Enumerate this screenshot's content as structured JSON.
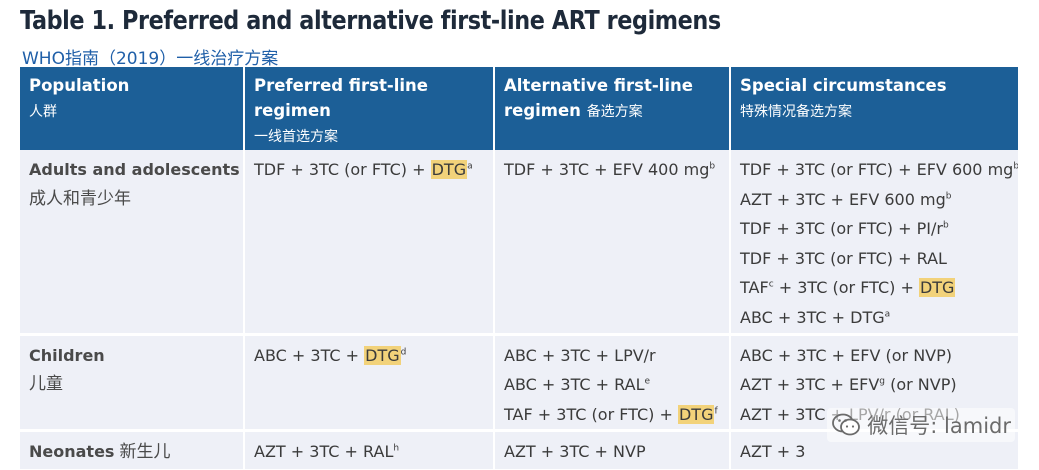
{
  "title": "Table 1. Preferred and alternative first-line ART regimens",
  "subtitle": "WHO指南（2019）一线治疗方案",
  "headers": [
    {
      "en": "Population",
      "cn": "人群"
    },
    {
      "en": "Preferred first-line regimen",
      "cn": "一线首选方案"
    },
    {
      "en": "Alternative first-line regimen",
      "cn": "备选方案"
    },
    {
      "en": "Special circumstances",
      "cn": "特殊情况备选方案"
    }
  ],
  "rows": [
    {
      "population_en": "Adults and adolescents",
      "population_cn": "成人和青少年",
      "preferred": [
        {
          "pre": "TDF + 3TC (or FTC) + ",
          "hl": "DTG",
          "sup": "a",
          "post": ""
        }
      ],
      "alternative": [
        {
          "pre": "TDF + 3TC + EFV 400 mg",
          "hl": "",
          "sup": "b",
          "post": ""
        }
      ],
      "special": [
        {
          "pre": "TDF + 3TC (or FTC) + EFV 600 mg",
          "hl": "",
          "sup": "b",
          "post": ""
        },
        {
          "pre": "AZT + 3TC + EFV 600 mg",
          "hl": "",
          "sup": "b",
          "post": ""
        },
        {
          "pre": "TDF + 3TC (or FTC) + PI/r",
          "hl": "",
          "sup": "b",
          "post": ""
        },
        {
          "pre": "TDF + 3TC (or FTC) + RAL",
          "hl": "",
          "sup": "",
          "post": ""
        },
        {
          "pre": "TAF",
          "sup_mid": "c",
          "mid": " + 3TC (or FTC) + ",
          "hl": "DTG",
          "sup": "",
          "post": ""
        },
        {
          "pre": "ABC + 3TC + DTG",
          "hl": "",
          "sup": "a",
          "post": ""
        }
      ]
    },
    {
      "population_en": "Children",
      "population_cn": "儿童",
      "preferred": [
        {
          "pre": "ABC + 3TC + ",
          "hl": "DTG",
          "sup": "d",
          "post": ""
        }
      ],
      "alternative": [
        {
          "pre": "ABC + 3TC + LPV/r",
          "hl": "",
          "sup": "",
          "post": ""
        },
        {
          "pre": "ABC + 3TC + RAL",
          "hl": "",
          "sup": "e",
          "post": ""
        },
        {
          "pre": "TAF + 3TC (or FTC) + ",
          "hl": "DTG",
          "sup": "f",
          "post": ""
        }
      ],
      "special": [
        {
          "pre": "ABC + 3TC + EFV (or NVP)",
          "hl": "",
          "sup": "",
          "post": ""
        },
        {
          "pre": "AZT + 3TC + EFV",
          "hl": "",
          "sup": "g",
          "post": " (or NVP)"
        },
        {
          "pre": "AZT + 3TC + LPV/r (or RAL)",
          "hl": "",
          "sup": "",
          "post": ""
        }
      ]
    },
    {
      "population_en": "Neonates",
      "population_cn": "新生儿",
      "preferred": [
        {
          "pre": "AZT + 3TC + RAL",
          "hl": "",
          "sup": "h",
          "post": ""
        }
      ],
      "alternative": [
        {
          "pre": "AZT + 3TC + NVP",
          "hl": "",
          "sup": "",
          "post": ""
        }
      ],
      "special": [
        {
          "pre": "AZT + 3",
          "hl": "",
          "sup": "",
          "post": ""
        }
      ]
    }
  ],
  "watermark": {
    "icon": "wechat-icon",
    "text": "微信号: lamidr"
  }
}
